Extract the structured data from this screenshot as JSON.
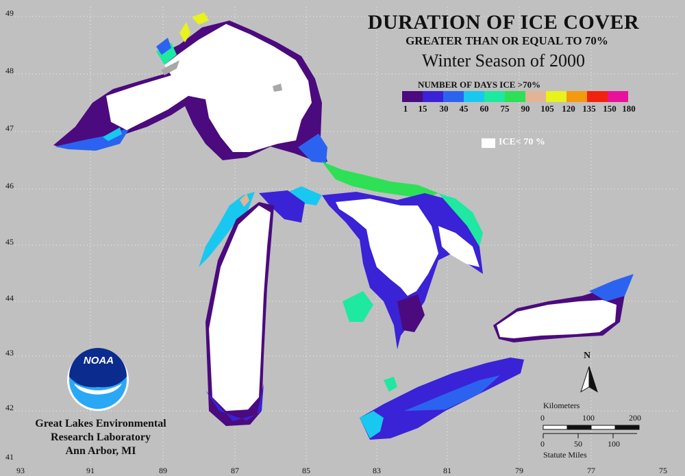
{
  "title": {
    "line1": "DURATION OF ICE COVER",
    "line2": "GREATER THAN OR EQUAL TO 70%",
    "line3": "Winter Season of 2000"
  },
  "legend": {
    "title": "NUMBER OF DAYS ICE >70%",
    "colors": [
      "#4b0a7e",
      "#3a22d6",
      "#2b63f0",
      "#18c8f0",
      "#1fe8a0",
      "#2de055",
      "#e3b396",
      "#e8f21c",
      "#f59a0f",
      "#f2220e",
      "#e8129a"
    ],
    "ticks": [
      "1",
      "15",
      "30",
      "45",
      "60",
      "75",
      "90",
      "105",
      "120",
      "135",
      "150",
      "180"
    ],
    "ice_label": "ICE< 70 %"
  },
  "axes": {
    "lat": [
      "49",
      "48",
      "47",
      "46",
      "45",
      "44",
      "43",
      "42",
      "41"
    ],
    "lon": [
      "93",
      "91",
      "89",
      "87",
      "85",
      "83",
      "81",
      "79",
      "77",
      "75"
    ]
  },
  "lab": {
    "logo_text": "NOAA",
    "line1": "Great Lakes Environmental",
    "line2": "Research Laboratory",
    "line3": "Ann Arbor, MI"
  },
  "scale": {
    "north": "N",
    "km_label": "Kilometers",
    "km_ticks": [
      "0",
      "100",
      "200"
    ],
    "mi_ticks": [
      "0",
      "50",
      "100"
    ],
    "mi_label": "Statute Miles"
  }
}
